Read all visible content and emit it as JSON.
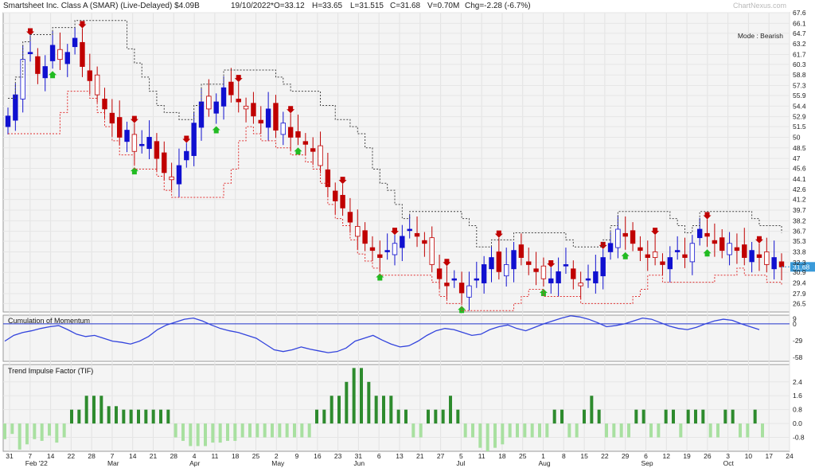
{
  "header": {
    "title": "Smartsheet Inc. Class A (SMAR) (Live-Delayed) $4.09B",
    "date": "19/10/2022*",
    "open": "O=33.12",
    "high": "H=33.65",
    "low": "L=31.515",
    "close": "C=31.68",
    "volume": "V=0.70M",
    "change": "Chg=-2.28 (-6.7%)",
    "watermark": "ChartNexus.com"
  },
  "chart_data": [
    {
      "type": "candlestick",
      "title": "Smartsheet Inc. Class A (SMAR) (Live-Delayed) $4.09B",
      "mode_label": "Mode : Bearish",
      "last_price_label": "31.68",
      "ylim": [
        25.3,
        67.6
      ],
      "y_ticks": [
        "67.6",
        "66.1",
        "64.7",
        "63.2",
        "61.7",
        "60.3",
        "58.8",
        "57.3",
        "55.9",
        "54.4",
        "52.9",
        "51.5",
        "50",
        "48.5",
        "47",
        "45.6",
        "44.1",
        "42.6",
        "41.2",
        "39.7",
        "38.2",
        "36.7",
        "35.3",
        "33.8",
        "32.3",
        "30.9",
        "29.4",
        "27.9",
        "26.5"
      ],
      "x_tick_labels": [
        "31",
        "7",
        "14",
        "22",
        "28",
        "7",
        "14",
        "21",
        "28",
        "4",
        "11",
        "18",
        "25",
        "2",
        "9",
        "16",
        "23",
        "31",
        "6",
        "13",
        "21",
        "27",
        "5",
        "11",
        "18",
        "25",
        "1",
        "8",
        "15",
        "22",
        "29",
        "6",
        "12",
        "19",
        "26",
        "3",
        "10",
        "17",
        "24"
      ],
      "month_labels": [
        "Feb '22",
        "Mar",
        "Apr",
        "May",
        "Jun",
        "Jul",
        "Aug",
        "Sep",
        "Oct"
      ],
      "colors": {
        "bear": "#c00000",
        "bull": "#1010d0",
        "neutral_outline": "#c00000",
        "resistance": "#444444",
        "support": "#e03030",
        "up_arrow": "#22bb22",
        "down_arrow": "#c00000"
      },
      "close_series": [
        53,
        56,
        61,
        62,
        59,
        60,
        63,
        61,
        62,
        64,
        60,
        58,
        56,
        54,
        52,
        50,
        51,
        48,
        49,
        50,
        47,
        45,
        44,
        46,
        48,
        52,
        55,
        54,
        55,
        57,
        56,
        55,
        54,
        53,
        52,
        54,
        51,
        52,
        50,
        50,
        49,
        48,
        46,
        43,
        41,
        40,
        38,
        36,
        35,
        34,
        33,
        34,
        35,
        36,
        37,
        36,
        35,
        32,
        30,
        29,
        30,
        28,
        29,
        30,
        32,
        33,
        31,
        32,
        34,
        33,
        32,
        31,
        30,
        30,
        31,
        32,
        30,
        29,
        30,
        31,
        33,
        35,
        37,
        36,
        35,
        34,
        33,
        33,
        32,
        33,
        34,
        33,
        35,
        37,
        36,
        35,
        34,
        35,
        34,
        33,
        34,
        33,
        32,
        33,
        31.68
      ]
    },
    {
      "type": "line",
      "title": "Cumulation of Momentum",
      "ylim": [
        -65,
        15
      ],
      "y_ticks": [
        "9",
        "0",
        "-29",
        "-58"
      ],
      "zero_value": 0,
      "series": [
        {
          "values": [
            -30,
            -20,
            -15,
            -12,
            -8,
            -5,
            -3,
            -10,
            -18,
            -22,
            -20,
            -25,
            -30,
            -32,
            -35,
            -30,
            -22,
            -10,
            -2,
            3,
            8,
            10,
            5,
            -2,
            -8,
            -12,
            -15,
            -20,
            -25,
            -35,
            -45,
            -48,
            -45,
            -40,
            -44,
            -47,
            -50,
            -48,
            -42,
            -30,
            -25,
            -20,
            -28,
            -35,
            -40,
            -38,
            -30,
            -20,
            -12,
            -8,
            -10,
            -15,
            -20,
            -18,
            -10,
            -5,
            -2,
            -8,
            -12,
            -6,
            0,
            5,
            10,
            14,
            12,
            8,
            2,
            -5,
            -3,
            0,
            5,
            10,
            8,
            2,
            -4,
            -8,
            -10,
            -6,
            0,
            5,
            8,
            6,
            0,
            -5,
            -10
          ]
        }
      ]
    },
    {
      "type": "bar",
      "title": "Trend Impulse Factor (TIF)",
      "ylim": [
        -1.6,
        3.4
      ],
      "y_ticks": [
        "2.4",
        "1.6",
        "0.8",
        "0.0",
        "-0.8"
      ],
      "series": [
        {
          "values": [
            -0.9,
            -0.6,
            -1.5,
            -1.2,
            -0.9,
            -1.0,
            -0.7,
            -1.1,
            -0.8,
            0.8,
            0.8,
            1.6,
            1.6,
            1.6,
            1.0,
            1.0,
            0.8,
            0.8,
            0.8,
            0.8,
            0.8,
            0.8,
            0.8,
            -0.8,
            -1.0,
            -1.3,
            -1.3,
            -1.3,
            -1.1,
            -1.1,
            -1.0,
            -1.0,
            -0.8,
            -0.8,
            -0.8,
            -0.8,
            -0.8,
            -0.8,
            -0.8,
            -0.8,
            -0.8,
            -0.8,
            0.8,
            0.8,
            1.6,
            1.6,
            2.4,
            3.2,
            3.2,
            2.4,
            1.6,
            1.6,
            1.6,
            0.8,
            0.8,
            -0.8,
            -0.8,
            0.8,
            0.8,
            0.8,
            1.6,
            0.8,
            -0.8,
            -0.8,
            -1.4,
            -1.6,
            -1.4,
            -1.2,
            -0.8,
            -0.8,
            -0.8,
            -0.8,
            -0.8,
            -0.8,
            0.8,
            0.8,
            -0.8,
            -0.8,
            0.8,
            1.6,
            0.8,
            -0.8,
            -0.8,
            -0.8,
            -0.8,
            0.8,
            0.8,
            -0.8,
            -0.8,
            0.8,
            0.8,
            -0.8,
            0.8,
            0.8,
            0.8,
            -0.8,
            -0.8,
            0.8,
            0.8,
            -0.8,
            -0.8,
            0.8,
            -0.8
          ]
        }
      ]
    }
  ]
}
